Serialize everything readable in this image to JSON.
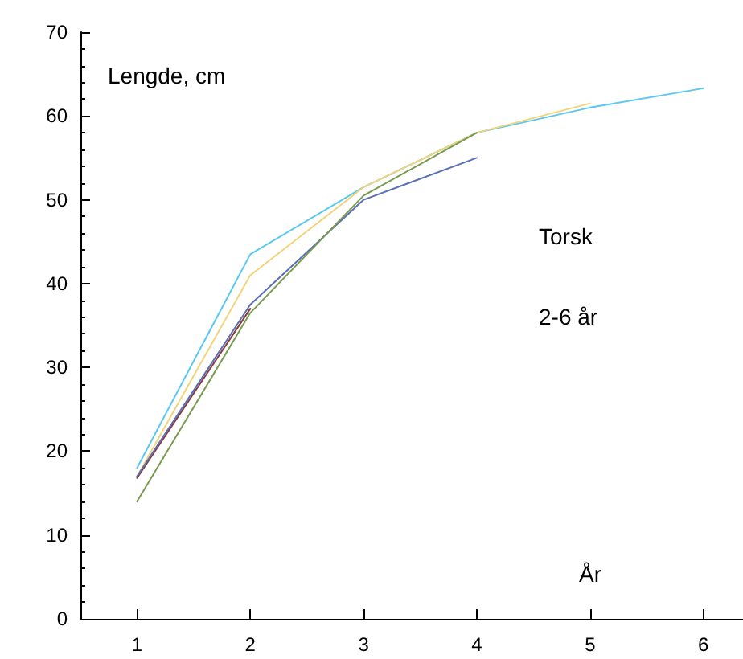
{
  "chart_data": {
    "type": "line",
    "ylabel": "Lengde, cm",
    "xlabel": "År",
    "annotations": [
      "Torsk",
      "2-6 år"
    ],
    "xlim": [
      0.5,
      6.35
    ],
    "xticks": [
      1,
      2,
      3,
      4,
      5,
      6
    ],
    "ylim": [
      0,
      70
    ],
    "yticks": [
      0,
      10,
      20,
      30,
      40,
      50,
      60,
      70
    ],
    "grid": false,
    "marker": "none",
    "line_style": "solid",
    "series": [
      {
        "color": "#5bc8f0",
        "x": [
          1,
          2,
          3,
          4,
          5,
          6
        ],
        "values": [
          18,
          43.5,
          51.5,
          58,
          61,
          63.3
        ]
      },
      {
        "color": "#f5d37a",
        "x": [
          1,
          2,
          3,
          4,
          5
        ],
        "values": [
          17,
          41,
          51.5,
          58,
          61.5
        ]
      },
      {
        "color": "#8b3a3a",
        "x": [
          1,
          2
        ],
        "values": [
          16.8,
          37
        ]
      },
      {
        "color": "#5a6fb5",
        "x": [
          1,
          2,
          3,
          4
        ],
        "values": [
          17,
          37.5,
          50,
          55
        ]
      },
      {
        "color": "#7a9a50",
        "x": [
          1,
          2,
          3,
          4
        ],
        "values": [
          14,
          36.5,
          50.5,
          58
        ]
      }
    ]
  }
}
